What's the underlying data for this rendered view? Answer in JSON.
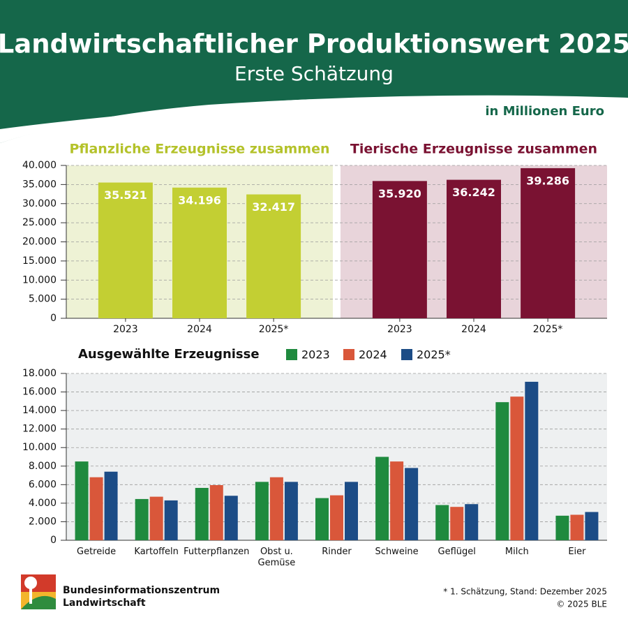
{
  "header": {
    "title": "Landwirtschaftlicher Produktionswert 2025",
    "subtitle": "Erste Schätzung",
    "unit": "in Millionen Euro"
  },
  "chart_data": [
    {
      "type": "panel-bar",
      "ylim": [
        0,
        40000
      ],
      "yticks": [
        0,
        {
          "value": 5000,
          "label": "5.000"
        },
        {
          "value": 10000,
          "label": "10.000"
        },
        {
          "value": 15000,
          "label": "15.000"
        },
        {
          "value": 20000,
          "label": "20.000"
        },
        {
          "value": 25000,
          "label": "25.000"
        },
        {
          "value": 30000,
          "label": "30.000"
        },
        {
          "value": 35000,
          "label": "35.000"
        },
        {
          "value": 40000,
          "label": "40.000"
        }
      ],
      "grid": true,
      "panels": [
        {
          "title": "Pflanzliche Erzeugnisse zusammen",
          "color": "#c3cf33",
          "title_color": "#b4c22a",
          "background": "#eef2d5",
          "categories": [
            "2023",
            "2024",
            "2025*"
          ],
          "values": [
            35521,
            34196,
            32417
          ],
          "value_labels": [
            "35.521",
            "34.196",
            "32.417"
          ]
        },
        {
          "title": "Tierische Erzeugnisse zusammen",
          "color": "#7a1232",
          "title_color": "#7a1232",
          "background": "#e8d4da",
          "categories": [
            "2023",
            "2024",
            "2025*"
          ],
          "values": [
            35920,
            36242,
            39286
          ],
          "value_labels": [
            "35.920",
            "36.242",
            "39.286"
          ]
        }
      ]
    },
    {
      "type": "grouped-bar",
      "title": "Ausgewählte Erzeugnisse",
      "categories": [
        "Getreide",
        "Kartoffeln",
        "Futterpflanzen",
        "Obst u.\nGemüse",
        "Rinder",
        "Schweine",
        "Geflügel",
        "Milch",
        "Eier"
      ],
      "series": [
        {
          "name": "2023",
          "color": "#1f8a3e",
          "values": [
            8500,
            4450,
            5650,
            6300,
            4550,
            9000,
            3800,
            14900,
            2650
          ]
        },
        {
          "name": "2024",
          "color": "#d9573a",
          "values": [
            6800,
            4700,
            5950,
            6800,
            4850,
            8500,
            3600,
            15500,
            2750
          ]
        },
        {
          "name": "2025*",
          "color": "#1c4c86",
          "values": [
            7400,
            4300,
            4800,
            6300,
            6300,
            7800,
            3900,
            17100,
            3050
          ]
        }
      ],
      "ylim": [
        0,
        18000
      ],
      "yticks": [
        0,
        {
          "value": 2000,
          "label": "2.000"
        },
        {
          "value": 4000,
          "label": "4.000"
        },
        {
          "value": 6000,
          "label": "6.000"
        },
        {
          "value": 8000,
          "label": "8.000"
        },
        {
          "value": 10000,
          "label": "10.000"
        },
        {
          "value": 12000,
          "label": "12.000"
        },
        {
          "value": 14000,
          "label": "14.000"
        },
        {
          "value": 16000,
          "label": "16.000"
        },
        {
          "value": 18000,
          "label": "18.000"
        }
      ],
      "grid": true
    }
  ],
  "footer": {
    "organization": [
      "Bundesinformationszentrum",
      "Landwirtschaft"
    ],
    "notes": [
      "* 1. Schätzung, Stand: Dezember 2025",
      "© 2025 BLE"
    ]
  }
}
